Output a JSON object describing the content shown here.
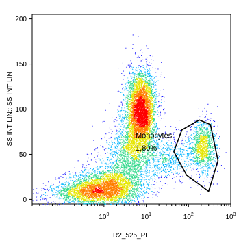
{
  "chart_data": {
    "type": "scatter",
    "subtype": "flow-cytometry-density",
    "xlabel": "R2_525_PE",
    "ylabel": "SS INT LIN:: SS INT LIN",
    "x_scale": "log",
    "xlim": [
      0.02,
      1000
    ],
    "y_scale": "linear",
    "ylim": [
      -5,
      205
    ],
    "x_ticks": [
      {
        "value": 1,
        "label": "10",
        "exp": "0"
      },
      {
        "value": 10,
        "label": "10",
        "exp": "1"
      },
      {
        "value": 100,
        "label": "10",
        "exp": "2"
      },
      {
        "value": 1000,
        "label": "10",
        "exp": "3"
      }
    ],
    "y_ticks": [
      {
        "value": 0,
        "label": "0"
      },
      {
        "value": 50,
        "label": "50"
      },
      {
        "value": 100,
        "label": "100"
      },
      {
        "value": 150,
        "label": "150"
      },
      {
        "value": 200,
        "label": "200"
      }
    ],
    "colormap": [
      "#1a1aff",
      "#00b4ff",
      "#33d98c",
      "#e6e600",
      "#ff7f00",
      "#ff0000"
    ],
    "populations": [
      {
        "cx": 1.0,
        "cy": 14,
        "sx": 0.45,
        "sy": 9,
        "n": 2600
      },
      {
        "cx": 0.45,
        "cy": 6,
        "sx": 0.5,
        "sy": 6,
        "n": 1400
      },
      {
        "cx": 7.5,
        "cy": 98,
        "sx": 0.17,
        "sy": 22,
        "n": 4800
      },
      {
        "cx": 4.5,
        "cy": 55,
        "sx": 0.22,
        "sy": 22,
        "n": 1300
      },
      {
        "cx": 2.5,
        "cy": 30,
        "sx": 0.35,
        "sy": 18,
        "n": 900
      },
      {
        "cx": 30,
        "cy": 48,
        "sx": 0.35,
        "sy": 12,
        "n": 700
      },
      {
        "cx": 220,
        "cy": 57,
        "sx": 0.16,
        "sy": 15,
        "n": 1200
      }
    ],
    "gate": {
      "name": "Monocytes",
      "percent": "1,80%",
      "vertices": [
        [
          70,
          77
        ],
        [
          180,
          88
        ],
        [
          330,
          83
        ],
        [
          500,
          43
        ],
        [
          300,
          9
        ],
        [
          90,
          27
        ],
        [
          45,
          53
        ]
      ]
    }
  }
}
